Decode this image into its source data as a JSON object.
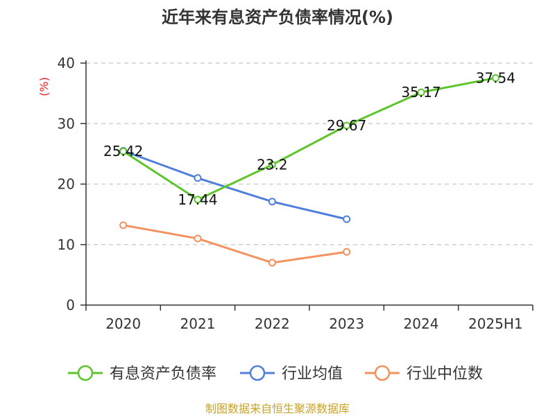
{
  "chart_data": {
    "type": "line",
    "title": "近年来有息资产负债率情况(%)",
    "ylabel": "(%)",
    "categories": [
      "2020",
      "2021",
      "2022",
      "2023",
      "2024",
      "2025H1"
    ],
    "ylim": [
      0,
      40
    ],
    "yticks": [
      0,
      10,
      20,
      30,
      40
    ],
    "grid": true,
    "legend_position": "bottom",
    "series": [
      {
        "name": "有息资产负债率",
        "color": "#5cc52c",
        "values": [
          25.42,
          17.44,
          23.2,
          29.67,
          35.17,
          37.54
        ],
        "labels": [
          "25.42",
          "17.44",
          "23.2",
          "29.67",
          "35.17",
          "37.54"
        ]
      },
      {
        "name": "行业均值",
        "color": "#4f7fdc",
        "values": [
          25.5,
          21.0,
          17.1,
          14.2,
          null,
          null
        ]
      },
      {
        "name": "行业中位数",
        "color": "#f4915e",
        "values": [
          13.2,
          11.0,
          7.0,
          8.8,
          null,
          null
        ]
      }
    ],
    "source": "制图数据来自恒生聚源数据库"
  }
}
